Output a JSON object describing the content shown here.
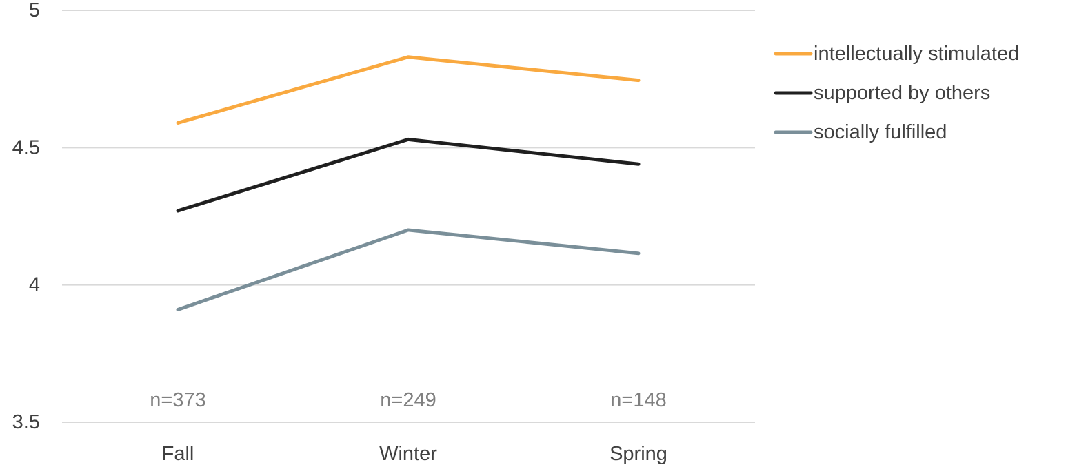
{
  "chart_data": {
    "type": "line",
    "categories": [
      "Fall",
      "Winter",
      "Spring"
    ],
    "series": [
      {
        "name": "intellectually stimulated",
        "values": [
          4.59,
          4.83,
          4.745
        ],
        "color": "#f9a940"
      },
      {
        "name": "supported by others",
        "values": [
          4.27,
          4.53,
          4.44
        ],
        "color": "#1f1f1f"
      },
      {
        "name": "socially fulfilled",
        "values": [
          3.91,
          4.2,
          4.115
        ],
        "color": "#7a8f99"
      }
    ],
    "sample_sizes": [
      "n=373",
      "n=249",
      "n=148"
    ],
    "y_ticks": [
      "3.5",
      "4",
      "4.5",
      "5"
    ],
    "ylim": [
      3.5,
      5
    ],
    "grid": true,
    "legend_position": "right",
    "title": "",
    "xlabel": "",
    "ylabel": ""
  }
}
